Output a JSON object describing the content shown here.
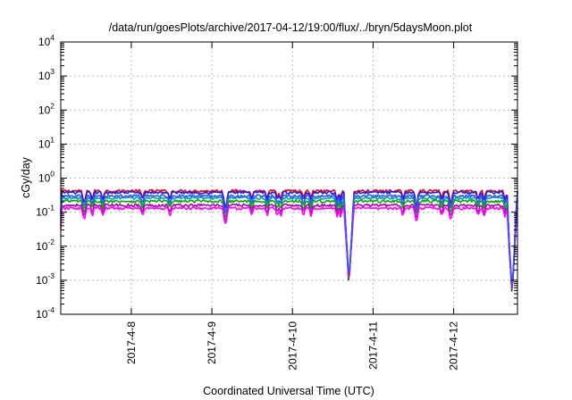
{
  "chart_data": {
    "type": "line",
    "title": "/data/run/goesPlots/archive/2017-04-12/19:00/flux/../bryn/5daysMoon.plot",
    "xlabel": "Coordinated Universal Time (UTC)",
    "ylabel": "cGy/day",
    "yscale": "log",
    "ylim": [
      0.0001,
      10000
    ],
    "xlim": [
      "2017-04-07 03:00",
      "2017-04-12 19:00"
    ],
    "x_tick_labels": [
      "2017-4-8",
      "2017-4-9",
      "2017-4-10",
      "2017-4-11",
      "2017-4-12"
    ],
    "x_tick_dates": [
      "2017-04-08 00:00",
      "2017-04-09 00:00",
      "2017-04-10 00:00",
      "2017-04-11 00:00",
      "2017-04-12 00:00"
    ],
    "y_tick_labels": [
      {
        "base": "10",
        "exp": "4"
      },
      {
        "base": "10",
        "exp": "3"
      },
      {
        "base": "10",
        "exp": "2"
      },
      {
        "base": "10",
        "exp": "1"
      },
      {
        "base": "10",
        "exp": "0"
      },
      {
        "base": "10",
        "exp": "-1"
      },
      {
        "base": "10",
        "exp": "-2"
      },
      {
        "base": "10",
        "exp": "-3"
      },
      {
        "base": "10",
        "exp": "-4"
      }
    ],
    "y_tick_values": [
      10000,
      1000,
      100,
      10,
      1,
      0.1,
      0.01,
      0.001,
      0.0001
    ],
    "grid": true,
    "legend": "none",
    "series_colors": [
      "#ff0000",
      "#1e1ee6",
      "#00aaaa",
      "#00aa00",
      "#b000b0",
      "#ff00ff",
      "#3355ff"
    ],
    "baseline_levels": [
      0.42,
      0.38,
      0.26,
      0.21,
      0.16,
      0.13,
      0.3
    ],
    "dips": [
      {
        "x": "2017-04-10 16:48",
        "y_min": 0.0006
      },
      {
        "x": "2017-04-12 17:24",
        "y_min": 0.0003
      }
    ]
  }
}
